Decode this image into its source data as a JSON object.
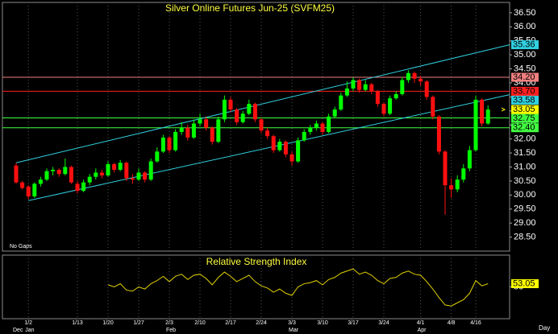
{
  "chart_data": {
    "type": "candlestick",
    "title": "Silver Online Futures Jun-25 (SVFM25)",
    "note": "No Gaps",
    "x_unit": "Day",
    "categories": [
      null,
      null,
      "1/2",
      null,
      null,
      null,
      null,
      null,
      null,
      null,
      "1/13",
      null,
      null,
      null,
      null,
      "1/20",
      null,
      null,
      null,
      null,
      "1/27",
      null,
      null,
      null,
      null,
      "2/3",
      null,
      null,
      null,
      null,
      "2/10",
      null,
      null,
      null,
      null,
      "2/17",
      null,
      null,
      null,
      null,
      "2/24",
      null,
      null,
      null,
      null,
      "3/3",
      null,
      null,
      null,
      null,
      "3/10",
      null,
      null,
      null,
      null,
      "3/17",
      null,
      null,
      null,
      null,
      "3/24",
      null,
      null,
      null,
      null,
      null,
      "4/1",
      null,
      null,
      null,
      null,
      "4/8",
      null,
      null,
      null,
      "4/16",
      null,
      null
    ],
    "months": [
      "Dec",
      null,
      "Jan",
      null,
      null,
      null,
      null,
      null,
      null,
      null,
      null,
      null,
      null,
      null,
      null,
      null,
      null,
      null,
      null,
      null,
      null,
      null,
      null,
      null,
      null,
      "Feb",
      null,
      null,
      null,
      null,
      null,
      null,
      null,
      null,
      null,
      null,
      null,
      null,
      null,
      null,
      null,
      null,
      null,
      null,
      null,
      "Mar",
      null,
      null,
      null,
      null,
      null,
      null,
      null,
      null,
      null,
      null,
      null,
      null,
      null,
      null,
      null,
      null,
      null,
      null,
      null,
      null,
      "Apr",
      null,
      null,
      null,
      null,
      null,
      null,
      null,
      null,
      null,
      null,
      null
    ],
    "ohlc": [
      [
        31.05,
        31.15,
        30.4,
        30.45
      ],
      [
        30.45,
        30.5,
        30.2,
        30.25
      ],
      [
        30.3,
        30.35,
        29.85,
        29.95
      ],
      [
        29.95,
        30.45,
        29.9,
        30.4
      ],
      [
        30.4,
        30.65,
        30.3,
        30.55
      ],
      [
        30.55,
        30.95,
        30.5,
        30.85
      ],
      [
        30.85,
        31.0,
        30.7,
        30.9
      ],
      [
        30.9,
        30.95,
        30.65,
        30.75
      ],
      [
        30.75,
        31.3,
        30.7,
        31.0
      ],
      [
        31.0,
        31.05,
        30.4,
        30.45
      ],
      [
        30.4,
        30.5,
        30.05,
        30.15
      ],
      [
        30.15,
        30.55,
        30.1,
        30.45
      ],
      [
        30.45,
        30.75,
        30.35,
        30.65
      ],
      [
        30.65,
        30.95,
        30.55,
        30.8
      ],
      [
        30.8,
        30.9,
        30.6,
        30.7
      ],
      [
        30.7,
        31.2,
        30.65,
        31.1
      ],
      [
        31.1,
        31.15,
        30.8,
        30.9
      ],
      [
        30.9,
        31.25,
        30.85,
        31.15
      ],
      [
        31.15,
        31.2,
        30.5,
        30.6
      ],
      [
        30.6,
        30.75,
        30.4,
        30.55
      ],
      [
        30.55,
        30.95,
        30.5,
        30.8
      ],
      [
        30.8,
        30.85,
        30.45,
        30.55
      ],
      [
        30.55,
        31.3,
        30.5,
        31.2
      ],
      [
        31.2,
        31.7,
        31.15,
        31.55
      ],
      [
        31.55,
        32.15,
        31.5,
        32.05
      ],
      [
        32.05,
        32.1,
        31.5,
        31.6
      ],
      [
        31.6,
        32.35,
        31.55,
        32.25
      ],
      [
        32.25,
        32.6,
        32.15,
        32.4
      ],
      [
        32.4,
        32.5,
        31.95,
        32.05
      ],
      [
        32.05,
        32.7,
        32.0,
        32.55
      ],
      [
        32.55,
        32.9,
        32.45,
        32.7
      ],
      [
        32.7,
        32.8,
        32.3,
        32.4
      ],
      [
        32.4,
        32.45,
        31.8,
        31.9
      ],
      [
        31.9,
        32.8,
        31.85,
        32.7
      ],
      [
        32.7,
        33.55,
        32.6,
        33.4
      ],
      [
        33.4,
        33.5,
        32.95,
        33.05
      ],
      [
        33.05,
        33.1,
        32.5,
        32.6
      ],
      [
        32.6,
        33.0,
        32.55,
        32.9
      ],
      [
        32.9,
        33.4,
        32.85,
        33.25
      ],
      [
        33.25,
        33.3,
        32.6,
        32.7
      ],
      [
        32.7,
        32.75,
        32.2,
        32.3
      ],
      [
        32.3,
        32.4,
        32.0,
        32.1
      ],
      [
        32.1,
        32.15,
        31.5,
        31.6
      ],
      [
        31.6,
        32.0,
        31.55,
        31.9
      ],
      [
        31.9,
        31.95,
        31.35,
        31.45
      ],
      [
        31.45,
        31.55,
        31.05,
        31.2
      ],
      [
        31.2,
        32.05,
        31.15,
        31.95
      ],
      [
        31.95,
        32.35,
        31.9,
        32.25
      ],
      [
        32.25,
        32.5,
        32.15,
        32.4
      ],
      [
        32.4,
        32.65,
        32.3,
        32.55
      ],
      [
        32.55,
        32.6,
        32.15,
        32.25
      ],
      [
        32.25,
        32.9,
        32.2,
        32.8
      ],
      [
        32.8,
        33.15,
        32.75,
        33.05
      ],
      [
        33.05,
        33.65,
        33.0,
        33.55
      ],
      [
        33.55,
        34.05,
        33.5,
        33.8
      ],
      [
        33.8,
        34.2,
        33.7,
        34.1
      ],
      [
        34.1,
        34.15,
        33.65,
        33.75
      ],
      [
        33.75,
        34.1,
        33.7,
        33.95
      ],
      [
        33.95,
        34.0,
        33.6,
        33.7
      ],
      [
        33.7,
        33.75,
        33.15,
        33.25
      ],
      [
        33.25,
        33.3,
        32.8,
        32.9
      ],
      [
        32.9,
        33.55,
        32.85,
        33.45
      ],
      [
        33.45,
        33.7,
        33.4,
        33.6
      ],
      [
        33.6,
        34.2,
        33.55,
        34.1
      ],
      [
        34.1,
        34.45,
        34.0,
        34.35
      ],
      [
        34.35,
        34.4,
        34.0,
        34.15
      ],
      [
        34.15,
        34.25,
        33.9,
        34.05
      ],
      [
        34.05,
        34.1,
        33.4,
        33.5
      ],
      [
        33.5,
        33.55,
        32.7,
        32.8
      ],
      [
        32.8,
        32.85,
        31.45,
        31.55
      ],
      [
        31.55,
        31.6,
        29.3,
        30.35
      ],
      [
        30.35,
        30.6,
        29.9,
        30.2
      ],
      [
        30.2,
        30.7,
        30.1,
        30.55
      ],
      [
        30.55,
        31.1,
        30.45,
        30.95
      ],
      [
        30.95,
        31.75,
        30.85,
        31.6
      ],
      [
        31.6,
        33.55,
        31.55,
        33.4
      ],
      [
        33.4,
        33.45,
        32.45,
        32.55
      ],
      [
        32.55,
        33.2,
        32.5,
        33.05
      ]
    ],
    "up_color": "#00ff00",
    "down_color": "#ff1010",
    "ylim": [
      28.0,
      36.87
    ],
    "yticks": [
      {
        "value": 28.5,
        "label": "28.50"
      },
      {
        "value": 29.0,
        "label": "29.00"
      },
      {
        "value": 29.5,
        "label": "29.50"
      },
      {
        "value": 30.0,
        "label": "30.00"
      },
      {
        "value": 30.5,
        "label": "30.50"
      },
      {
        "value": 31.0,
        "label": "31.00"
      },
      {
        "value": 31.5,
        "label": "31.50"
      },
      {
        "value": 32.0,
        "label": "32.00"
      },
      {
        "value": 32.5,
        "label": "32.50"
      },
      {
        "value": 33.0,
        "label": "33.00"
      },
      {
        "value": 33.5,
        "label": "33.50"
      },
      {
        "value": 34.0,
        "label": "34.00"
      },
      {
        "value": 34.5,
        "label": "34.50"
      },
      {
        "value": 35.0,
        "label": "35.00"
      },
      {
        "value": 35.5,
        "label": "35.50"
      },
      {
        "value": 36.0,
        "label": "36.00"
      },
      {
        "value": 36.5,
        "label": "36.50"
      }
    ],
    "grid": true,
    "levels": [
      {
        "value": 34.2,
        "label": "34.20",
        "color": "#f08080"
      },
      {
        "value": 33.7,
        "label": "33.70",
        "color": "#ff2020"
      },
      {
        "value": 32.75,
        "label": "32.75",
        "color": "#40ff40"
      },
      {
        "value": 32.4,
        "label": "32.40",
        "color": "#40ff40"
      }
    ],
    "channels": [
      {
        "x0": 0,
        "y0": 31.15,
        "y1": 35.36,
        "label": "35.36",
        "color": "#30d0e0"
      },
      {
        "x0": 2,
        "y0": 29.8,
        "y1": 33.58,
        "label": "33.58",
        "color": "#30d0e0"
      }
    ],
    "last_price": {
      "value": 33.05,
      "label": "33.05",
      "color": "#ffff00"
    },
    "rsi": {
      "title": "Relative Strength Index",
      "color": "#e0d000",
      "ylim": [
        20,
        80
      ],
      "yticks": [
        50
      ],
      "values": [
        null,
        null,
        null,
        null,
        null,
        null,
        null,
        null,
        null,
        null,
        null,
        null,
        null,
        null,
        null,
        52,
        50,
        53,
        47,
        46,
        50,
        48,
        53,
        56,
        60,
        55,
        60,
        62,
        57,
        61,
        62,
        58,
        52,
        59,
        64,
        60,
        55,
        58,
        61,
        55,
        51,
        49,
        45,
        48,
        44,
        42,
        50,
        53,
        54,
        56,
        52,
        57,
        59,
        63,
        65,
        67,
        62,
        64,
        61,
        56,
        53,
        58,
        59,
        63,
        65,
        62,
        61,
        55,
        48,
        40,
        33,
        32,
        35,
        38,
        44,
        56,
        51,
        53.05
      ],
      "last": {
        "value": 53.05,
        "label": "53.05",
        "color": "#ffff00"
      }
    }
  }
}
